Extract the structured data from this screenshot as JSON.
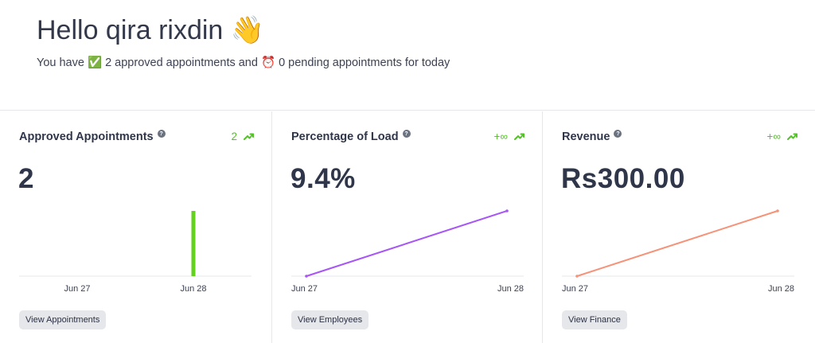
{
  "greeting": {
    "hello": "Hello qira rixdin 👋",
    "summary_prefix": "You have ✅ ",
    "approved_count": "2",
    "summary_mid": " approved appointments and ⏰ ",
    "pending_count": "0",
    "summary_suffix": " pending appointments for today"
  },
  "colors": {
    "trend_green": "#55c22b",
    "bar_green": "#62d21d",
    "load_purple": "#a855f7",
    "revenue_orange": "#f59278"
  },
  "cards": [
    {
      "title": "Approved Appointments",
      "help_icon": "question-circle-icon",
      "trend_value": "2",
      "trend_icon": "trend-up-icon",
      "metric": "2",
      "button": "View Appointments"
    },
    {
      "title": "Percentage of Load",
      "help_icon": "question-circle-icon",
      "trend_value": "+∞",
      "trend_icon": "trend-up-icon",
      "metric": "9.4%",
      "button": "View Employees"
    },
    {
      "title": "Revenue",
      "help_icon": "question-circle-icon",
      "trend_value": "+∞",
      "trend_icon": "trend-up-icon",
      "metric": "Rs300.00",
      "button": "View Finance"
    }
  ],
  "chart_data": [
    {
      "type": "bar",
      "categories": [
        "Jun 27",
        "Jun 28"
      ],
      "values": [
        0,
        2
      ],
      "ylim": [
        0,
        2
      ],
      "grid": false
    },
    {
      "type": "line",
      "x": [
        "Jun 27",
        "Jun 28"
      ],
      "values": [
        0,
        9.4
      ],
      "ylim": [
        0,
        9.4
      ],
      "grid": false
    },
    {
      "type": "line",
      "x": [
        "Jun 27",
        "Jun 28"
      ],
      "values": [
        0,
        300
      ],
      "ylim": [
        0,
        300
      ],
      "grid": false
    }
  ]
}
